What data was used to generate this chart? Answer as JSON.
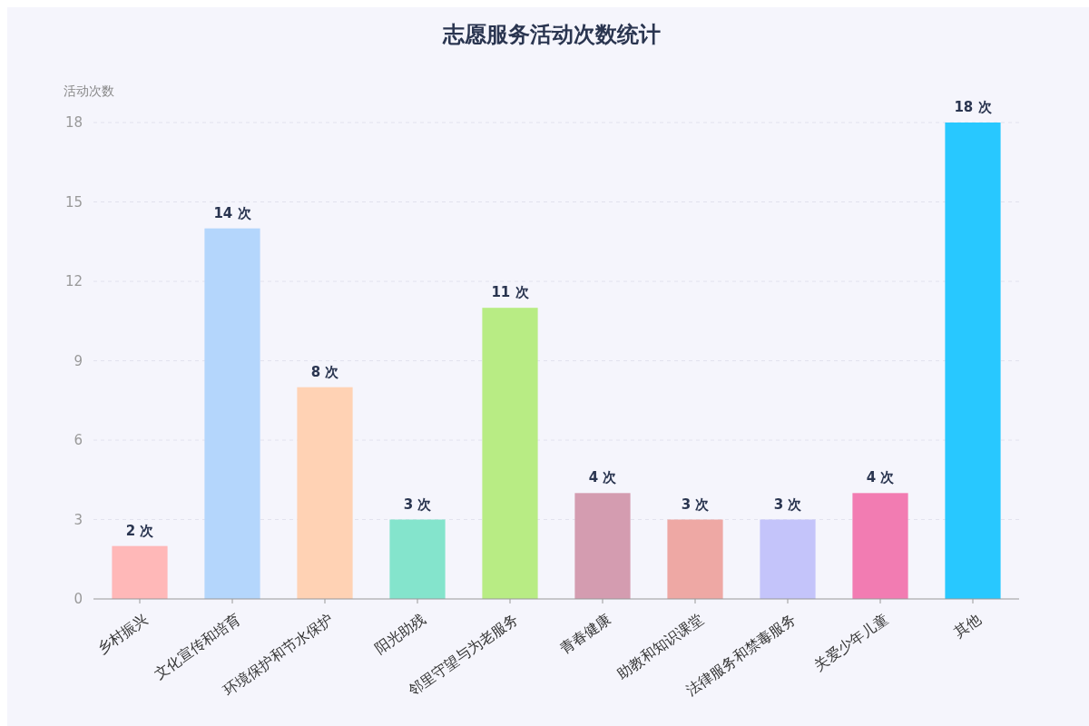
{
  "chart_data": {
    "type": "bar",
    "title": "志愿服务活动次数统计",
    "ylabel": "活动次数",
    "categories": [
      "乡村振兴",
      "文化宣传和培育",
      "环境保护和节水保护",
      "阳光助残",
      "邻里守望与为老服务",
      "青春健康",
      "助教和知识课堂",
      "法律服务和禁毒服务",
      "关爱少年儿童",
      "其他"
    ],
    "values": [
      2,
      14,
      8,
      3,
      11,
      4,
      3,
      3,
      4,
      18
    ],
    "colors": [
      "#ffb8b8",
      "#b4d6fc",
      "#ffd2b4",
      "#84e4cc",
      "#b8ec84",
      "#d49cb0",
      "#eea8a4",
      "#c4c4fa",
      "#f27cb2",
      "#28c8ff"
    ],
    "value_labels": [
      "2 次",
      "14 次",
      "8 次",
      "3 次",
      "11 次",
      "4 次",
      "3 次",
      "3 次",
      "4 次",
      "18 次"
    ],
    "ylim": [
      0,
      18
    ],
    "yticks": [
      0,
      3,
      6,
      9,
      12,
      15,
      18
    ],
    "grid": "y"
  }
}
